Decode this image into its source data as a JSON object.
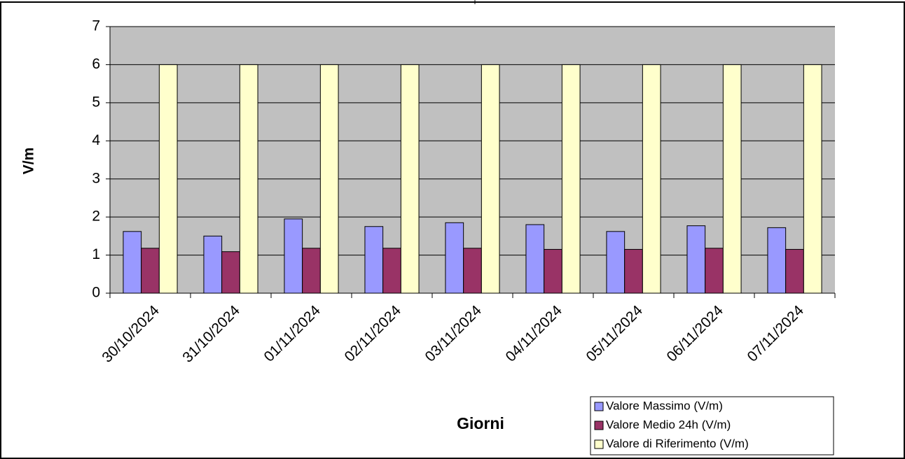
{
  "chart_data": {
    "type": "bar",
    "x_label": "Giorni",
    "y_label": "V/m",
    "categories": [
      "30/10/2024",
      "31/10/2024",
      "01/11/2024",
      "02/11/2024",
      "03/11/2024",
      "04/11/2024",
      "05/11/2024",
      "06/11/2024",
      "07/11/2024"
    ],
    "series": [
      {
        "name": "Valore Massimo (V/m)",
        "color": "#9999ff",
        "values": [
          1.62,
          1.5,
          1.95,
          1.75,
          1.85,
          1.8,
          1.62,
          1.77,
          1.72
        ]
      },
      {
        "name": "Valore Medio 24h (V/m)",
        "color": "#993366",
        "values": [
          1.18,
          1.09,
          1.18,
          1.18,
          1.18,
          1.15,
          1.15,
          1.18,
          1.15
        ]
      },
      {
        "name": "Valore di Riferimento (V/m)",
        "color": "#ffffcc",
        "values": [
          6,
          6,
          6,
          6,
          6,
          6,
          6,
          6,
          6
        ]
      }
    ],
    "ylim": [
      0,
      7
    ],
    "yticks": [
      0,
      1,
      2,
      3,
      4,
      5,
      6,
      7
    ],
    "grid": true,
    "legend": "bottom-right"
  }
}
